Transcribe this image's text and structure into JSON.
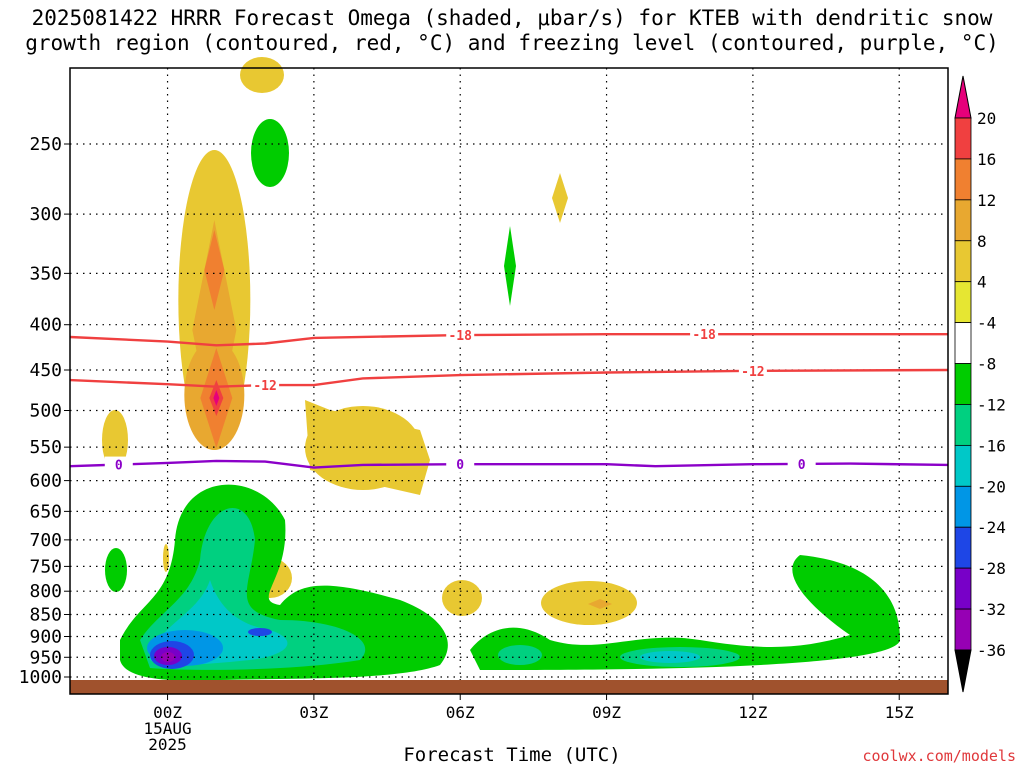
{
  "title": "2025081422 HRRR Forecast Omega (shaded, μbar/s) for KTEB with dendritic snow\ngrowth region (contoured, red, °C) and freezing level (contoured, purple, °C)",
  "xlabel": "Forecast Time (UTC)",
  "credit": "coolwx.com/models",
  "chart_data": {
    "type": "heatmap",
    "x_ticks": [
      "00Z\n15AUG\n2025",
      "03Z",
      "06Z",
      "09Z",
      "12Z",
      "15Z"
    ],
    "x_range": [
      "2025-08-14 22Z",
      "2025-08-15 16Z"
    ],
    "y_axis_label": "",
    "y_scale": "log",
    "y_ticks": [
      250,
      300,
      350,
      400,
      450,
      500,
      550,
      600,
      650,
      700,
      750,
      800,
      850,
      900,
      950,
      1000
    ],
    "y_range": [
      200,
      1020
    ],
    "grid": true,
    "colorbar": {
      "labels": [
        20,
        16,
        12,
        8,
        4,
        -4,
        -8,
        -12,
        -16,
        -20,
        -24,
        -28,
        -32,
        -36
      ],
      "colors": [
        "#e6007a",
        "#f04040",
        "#f08030",
        "#e8a830",
        "#e8c832",
        "#e6e632",
        "#ffffff",
        "#00cc00",
        "#00d080",
        "#00c8c8",
        "#0096e6",
        "#1e46e6",
        "#7800c8",
        "#9600b4",
        "#a0a0a0",
        "#000000"
      ]
    },
    "contours": [
      {
        "name": "-18",
        "color": "#f04040",
        "points": [
          [
            "2025-08-14 22Z",
            413
          ],
          [
            "2025-08-15 00Z",
            418
          ],
          [
            "2025-08-15 01Z",
            422
          ],
          [
            "2025-08-15 02Z",
            420
          ],
          [
            "2025-08-15 03Z",
            414
          ],
          [
            "2025-08-15 06Z",
            411
          ],
          [
            "2025-08-15 09Z",
            410
          ],
          [
            "2025-08-15 12Z",
            410
          ],
          [
            "2025-08-15 16Z",
            410
          ]
        ],
        "labels": [
          "2025-08-15 06Z",
          "2025-08-15 11Z"
        ]
      },
      {
        "name": "-12",
        "color": "#f04040",
        "points": [
          [
            "2025-08-14 22Z",
            462
          ],
          [
            "2025-08-15 00Z",
            467
          ],
          [
            "2025-08-15 01Z",
            470
          ],
          [
            "2025-08-15 02Z",
            468
          ],
          [
            "2025-08-15 03Z",
            468
          ],
          [
            "2025-08-15 04Z",
            460
          ],
          [
            "2025-08-15 06Z",
            456
          ],
          [
            "2025-08-15 09Z",
            453
          ],
          [
            "2025-08-15 12Z",
            451
          ],
          [
            "2025-08-15 16Z",
            450
          ]
        ],
        "labels": [
          "2025-08-15 02Z",
          "2025-08-15 12Z"
        ]
      },
      {
        "name": "0",
        "color": "#8b00c8",
        "points": [
          [
            "2025-08-14 22Z",
            578
          ],
          [
            "2025-08-15 00Z",
            573
          ],
          [
            "2025-08-15 01Z",
            570
          ],
          [
            "2025-08-15 02Z",
            571
          ],
          [
            "2025-08-15 03Z",
            580
          ],
          [
            "2025-08-15 04Z",
            576
          ],
          [
            "2025-08-15 06Z",
            575
          ],
          [
            "2025-08-15 09Z",
            575
          ],
          [
            "2025-08-15 10Z",
            578
          ],
          [
            "2025-08-15 12Z",
            575
          ],
          [
            "2025-08-15 14Z",
            574
          ],
          [
            "2025-08-15 16Z",
            576
          ]
        ],
        "labels": [
          "2025-08-14 23Z",
          "2025-08-15 06Z",
          "2025-08-15 13Z"
        ]
      }
    ],
    "omega_features": [
      {
        "level_min": 4,
        "t": [
          "2025-08-15 00Z",
          "2025-08-15 02Z"
        ],
        "p": [
          245,
          560
        ],
        "note": "upward-motion plume, max > 20 near 490 hPa at 01Z"
      },
      {
        "level_min": 4,
        "t": [
          "2025-08-15 03Z",
          "2025-08-15 05Z"
        ],
        "p": [
          490,
          595
        ]
      },
      {
        "level_min": -32,
        "t": [
          "2025-08-14 23Z",
          "2025-08-15 00Z"
        ],
        "p": [
          920,
          990
        ],
        "note": "strongest subsidence near 950 hPa at 00Z"
      },
      {
        "level_min": -4,
        "t": [
          "2025-08-15 06Z",
          "2025-08-15 15Z"
        ],
        "p": [
          760,
          1000
        ]
      }
    ]
  }
}
